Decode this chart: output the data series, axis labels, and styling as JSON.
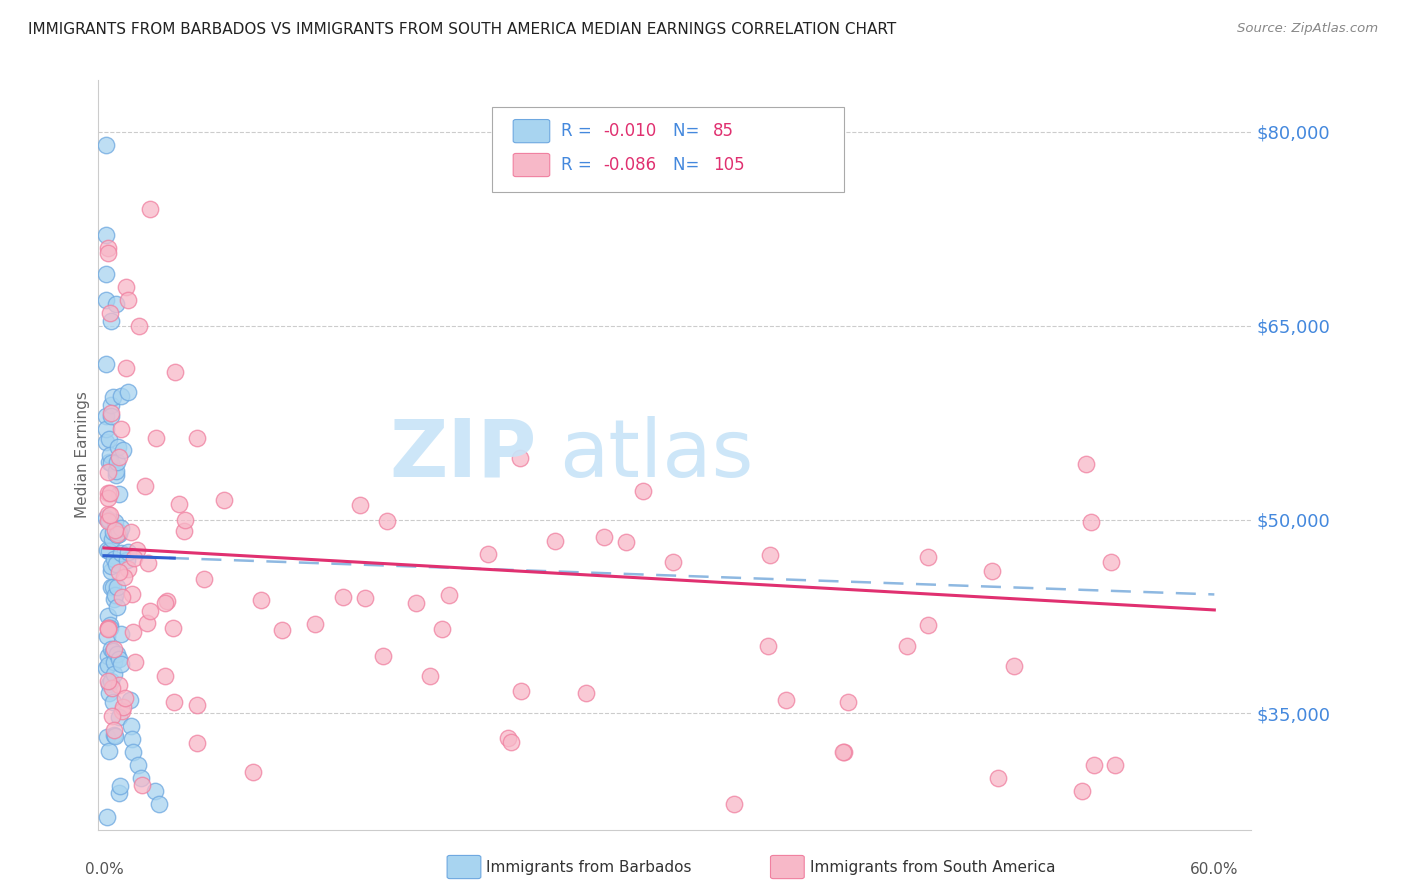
{
  "title": "IMMIGRANTS FROM BARBADOS VS IMMIGRANTS FROM SOUTH AMERICA MEDIAN EARNINGS CORRELATION CHART",
  "source": "Source: ZipAtlas.com",
  "ylabel": "Median Earnings",
  "yticks": [
    35000,
    50000,
    65000,
    80000
  ],
  "ytick_labels": [
    "$35,000",
    "$50,000",
    "$65,000",
    "$80,000"
  ],
  "ylim": [
    26000,
    84000
  ],
  "xlim": [
    -0.003,
    0.62
  ],
  "legend1_r": "-0.010",
  "legend1_n": "85",
  "legend2_r": "-0.086",
  "legend2_n": "105",
  "barbados_color": "#a8d4f0",
  "south_america_color": "#f7b8c8",
  "barbados_edge": "#6ea8e0",
  "south_america_edge": "#f080a0",
  "trendline_barbados_solid": "#3060d0",
  "trendline_barbados_dashed": "#7aacdc",
  "trendline_sa_color": "#e03070",
  "background_color": "#ffffff",
  "grid_color": "#cccccc",
  "title_color": "#222222",
  "source_color": "#888888",
  "ylabel_color": "#666666",
  "tick_label_color": "#4488dd",
  "watermark_zip_color": "#c8e4f8",
  "watermark_atlas_color": "#c8e4f8"
}
